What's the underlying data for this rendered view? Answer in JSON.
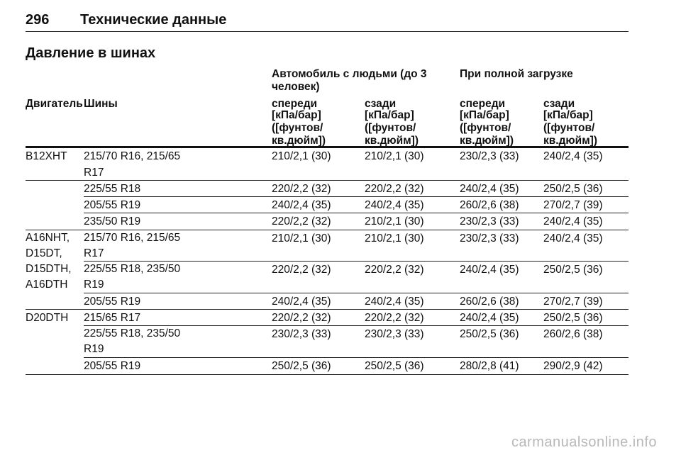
{
  "header": {
    "page_number": "296",
    "chapter": "Технические данные"
  },
  "section_title": "Давление в шинах",
  "table": {
    "group_headers": {
      "with_people": "Автомобиль с людьми (до 3 человек)",
      "full_load": "При полной загрузке"
    },
    "col_headers": {
      "engine": "Двигатель",
      "tyres": "Шины",
      "front": "спереди",
      "rear": "сзади"
    },
    "unit_label": "[кПа/бар] ([фунтов/ кв.дюйм])",
    "rows": [
      {
        "engine": "B12XHT",
        "tyres": "215/70 R16, 215/65 R17",
        "v1": "210/2,1 (30)",
        "v2": "210/2,1 (30)",
        "v3": "230/2,3 (33)",
        "v4": "240/2,4 (35)"
      },
      {
        "engine": "",
        "tyres": "225/55 R18",
        "v1": "220/2,2 (32)",
        "v2": "220/2,2 (32)",
        "v3": "240/2,4 (35)",
        "v4": "250/2,5 (36)"
      },
      {
        "engine": "",
        "tyres": "205/55 R19",
        "v1": "240/2,4 (35)",
        "v2": "240/2,4 (35)",
        "v3": "260/2,6 (38)",
        "v4": "270/2,7 (39)"
      },
      {
        "engine": "",
        "tyres": "235/50 R19",
        "v1": "220/2,2 (32)",
        "v2": "210/2,1 (30)",
        "v3": "230/2,3 (33)",
        "v4": "240/2,4 (35)"
      },
      {
        "engine": "A16NHT, D15DT,",
        "tyres": "215/70 R16, 215/65 R17",
        "v1": "210/2,1 (30)",
        "v2": "210/2,1 (30)",
        "v3": "230/2,3 (33)",
        "v4": "240/2,4 (35)"
      },
      {
        "engine": "D15DTH, A16DTH",
        "tyres": "225/55 R18, 235/50 R19",
        "v1": "220/2,2 (32)",
        "v2": "220/2,2 (32)",
        "v3": "240/2,4 (35)",
        "v4": "250/2,5 (36)"
      },
      {
        "engine": "",
        "tyres": "205/55 R19",
        "v1": "240/2,4 (35)",
        "v2": "240/2,4 (35)",
        "v3": "260/2,6 (38)",
        "v4": "270/2,7 (39)"
      },
      {
        "engine": "D20DTH",
        "tyres": "215/65 R17",
        "v1": "220/2,2 (32)",
        "v2": "220/2,2 (32)",
        "v3": "240/2,4 (35)",
        "v4": "250/2,5 (36)"
      },
      {
        "engine": "",
        "tyres": "225/55 R18, 235/50 R19",
        "v1": "230/2,3 (33)",
        "v2": "230/2,3 (33)",
        "v3": "250/2,5 (36)",
        "v4": "260/2,6 (38)"
      },
      {
        "engine": "",
        "tyres": "205/55 R19",
        "v1": "250/2,5 (36)",
        "v2": "250/2,5 (36)",
        "v3": "280/2,8 (41)",
        "v4": "290/2,9 (42)"
      }
    ]
  },
  "watermark": "carmanualsonline.info"
}
